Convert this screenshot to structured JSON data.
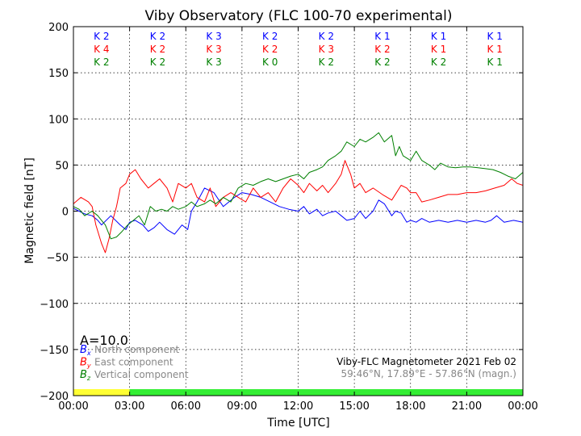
{
  "chart_data": {
    "type": "line",
    "title": "Viby Observatory (FLC 100-70 experimental)",
    "xlabel": "Time [UTC]",
    "ylabel": "Magnetic field [nT]",
    "xlim": [
      0,
      24
    ],
    "ylim": [
      -200,
      200
    ],
    "x_tick_labels": [
      "00:00",
      "03:00",
      "06:00",
      "09:00",
      "12:00",
      "15:00",
      "18:00",
      "21:00",
      "00:00"
    ],
    "y_tick_labels": [
      "−200",
      "−150",
      "−100",
      "−50",
      "0",
      "50",
      "100",
      "150",
      "200"
    ],
    "grid": true,
    "k_index_rows": [
      {
        "color": "#0000ff",
        "labels": [
          "K 2",
          "K 2",
          "K 3",
          "K 2",
          "K 2",
          "K 1",
          "K 1",
          "K 1"
        ]
      },
      {
        "color": "#ff0000",
        "labels": [
          "K 4",
          "K 2",
          "K 3",
          "K 2",
          "K 3",
          "K 2",
          "K 1",
          "K 1"
        ]
      },
      {
        "color": "#008000",
        "labels": [
          "K 2",
          "K 2",
          "K 3",
          "K 0",
          "K 2",
          "K 2",
          "K 2",
          "K 1"
        ]
      }
    ],
    "a_index_label": "A=10.0",
    "legend": [
      {
        "symbol": "Bx",
        "sym_main": "B",
        "sym_sub": "x",
        "text": "North component",
        "color": "#0000ff"
      },
      {
        "symbol": "By",
        "sym_main": "B",
        "sym_sub": "y",
        "text": "East component",
        "color": "#ff0000"
      },
      {
        "symbol": "Bz",
        "sym_main": "B",
        "sym_sub": "z",
        "text": "Vertical component",
        "color": "#008000"
      }
    ],
    "legend_placement": "lower-left",
    "station_line1": "Viby-FLC Magnetometer 2021 Feb 02",
    "station_line2": "59.46°N, 17.89°E - 57.86°N (magn.)",
    "status_bar": [
      {
        "from": 0,
        "to": 3,
        "color": "#ffff33"
      },
      {
        "from": 3,
        "to": 24,
        "color": "#33ee33"
      }
    ],
    "series": [
      {
        "name": "Bx",
        "color": "#0000ff",
        "x": [
          0,
          0.3,
          0.6,
          1,
          1.3,
          1.5,
          2,
          2.5,
          2.8,
          3,
          3.3,
          3.7,
          4,
          4.3,
          4.6,
          5,
          5.4,
          5.8,
          6.1,
          6.3,
          6.6,
          7,
          7.5,
          8,
          8.3,
          8.6,
          9,
          9.5,
          10,
          10.5,
          11,
          11.5,
          12,
          12.3,
          12.6,
          13,
          13.3,
          13.6,
          14,
          14.3,
          14.6,
          15,
          15.3,
          15.6,
          16,
          16.3,
          16.6,
          17,
          17.2,
          17.5,
          17.8,
          18,
          18.3,
          18.6,
          19,
          19.5,
          20,
          20.5,
          21,
          21.5,
          22,
          22.3,
          22.6,
          23,
          23.5,
          24
        ],
        "y": [
          3,
          0,
          -3,
          -5,
          -10,
          -15,
          -5,
          -15,
          -20,
          -12,
          -10,
          -15,
          -22,
          -18,
          -12,
          -20,
          -25,
          -15,
          -20,
          0,
          10,
          25,
          20,
          5,
          10,
          15,
          20,
          18,
          15,
          10,
          5,
          2,
          0,
          5,
          -3,
          2,
          -5,
          -2,
          0,
          -5,
          -10,
          -8,
          0,
          -8,
          0,
          12,
          8,
          -5,
          0,
          -2,
          -12,
          -10,
          -12,
          -8,
          -12,
          -10,
          -12,
          -10,
          -12,
          -10,
          -12,
          -10,
          -5,
          -12,
          -10,
          -12
        ]
      },
      {
        "name": "By",
        "color": "#ff0000",
        "x": [
          0,
          0.4,
          0.8,
          1,
          1.2,
          1.5,
          1.7,
          1.9,
          2.1,
          2.3,
          2.5,
          2.8,
          3,
          3.3,
          3.6,
          4,
          4.3,
          4.6,
          5,
          5.3,
          5.6,
          6,
          6.3,
          6.6,
          7,
          7.3,
          7.6,
          8,
          8.4,
          8.8,
          9.2,
          9.6,
          10,
          10.4,
          10.8,
          11.2,
          11.6,
          12,
          12.3,
          12.6,
          13,
          13.3,
          13.6,
          14,
          14.3,
          14.5,
          14.8,
          15,
          15.3,
          15.6,
          16,
          16.5,
          17,
          17.5,
          17.8,
          18,
          18.3,
          18.6,
          19,
          19.5,
          20,
          20.5,
          21,
          21.5,
          22,
          22.5,
          23,
          23.4,
          23.7,
          24
        ],
        "y": [
          8,
          15,
          10,
          5,
          -15,
          -35,
          -45,
          -30,
          -10,
          5,
          25,
          30,
          40,
          45,
          35,
          25,
          30,
          35,
          25,
          10,
          30,
          25,
          30,
          15,
          10,
          25,
          5,
          15,
          20,
          15,
          10,
          25,
          15,
          20,
          10,
          25,
          35,
          28,
          20,
          30,
          22,
          28,
          20,
          30,
          40,
          55,
          40,
          25,
          30,
          20,
          25,
          18,
          12,
          28,
          25,
          20,
          20,
          10,
          12,
          15,
          18,
          18,
          20,
          20,
          22,
          25,
          28,
          35,
          30,
          28
        ]
      },
      {
        "name": "Bz",
        "color": "#008000",
        "x": [
          0,
          0.3,
          0.6,
          1,
          1.3,
          1.5,
          1.7,
          2,
          2.3,
          2.6,
          2.9,
          3.2,
          3.5,
          3.8,
          4.1,
          4.4,
          4.7,
          5,
          5.3,
          5.6,
          6,
          6.3,
          6.6,
          7,
          7.3,
          7.6,
          8,
          8.4,
          8.8,
          9.2,
          9.6,
          10,
          10.4,
          10.8,
          11.2,
          11.6,
          12,
          12.3,
          12.6,
          13,
          13.3,
          13.6,
          14,
          14.3,
          14.6,
          15,
          15.3,
          15.6,
          16,
          16.3,
          16.6,
          17,
          17.2,
          17.4,
          17.6,
          18,
          18.3,
          18.6,
          19,
          19.3,
          19.6,
          20,
          20.4,
          20.8,
          21.2,
          21.6,
          22,
          22.4,
          22.8,
          23.2,
          23.6,
          24
        ],
        "y": [
          5,
          2,
          -5,
          0,
          -5,
          -10,
          -15,
          -30,
          -28,
          -22,
          -15,
          -10,
          -5,
          -15,
          5,
          0,
          2,
          0,
          5,
          2,
          5,
          10,
          5,
          8,
          12,
          8,
          15,
          10,
          25,
          30,
          28,
          32,
          35,
          32,
          35,
          38,
          40,
          35,
          42,
          45,
          48,
          55,
          60,
          65,
          75,
          70,
          78,
          75,
          80,
          85,
          75,
          82,
          60,
          70,
          60,
          55,
          65,
          55,
          50,
          45,
          52,
          48,
          47,
          48,
          48,
          47,
          46,
          45,
          42,
          38,
          35,
          42
        ]
      }
    ]
  }
}
